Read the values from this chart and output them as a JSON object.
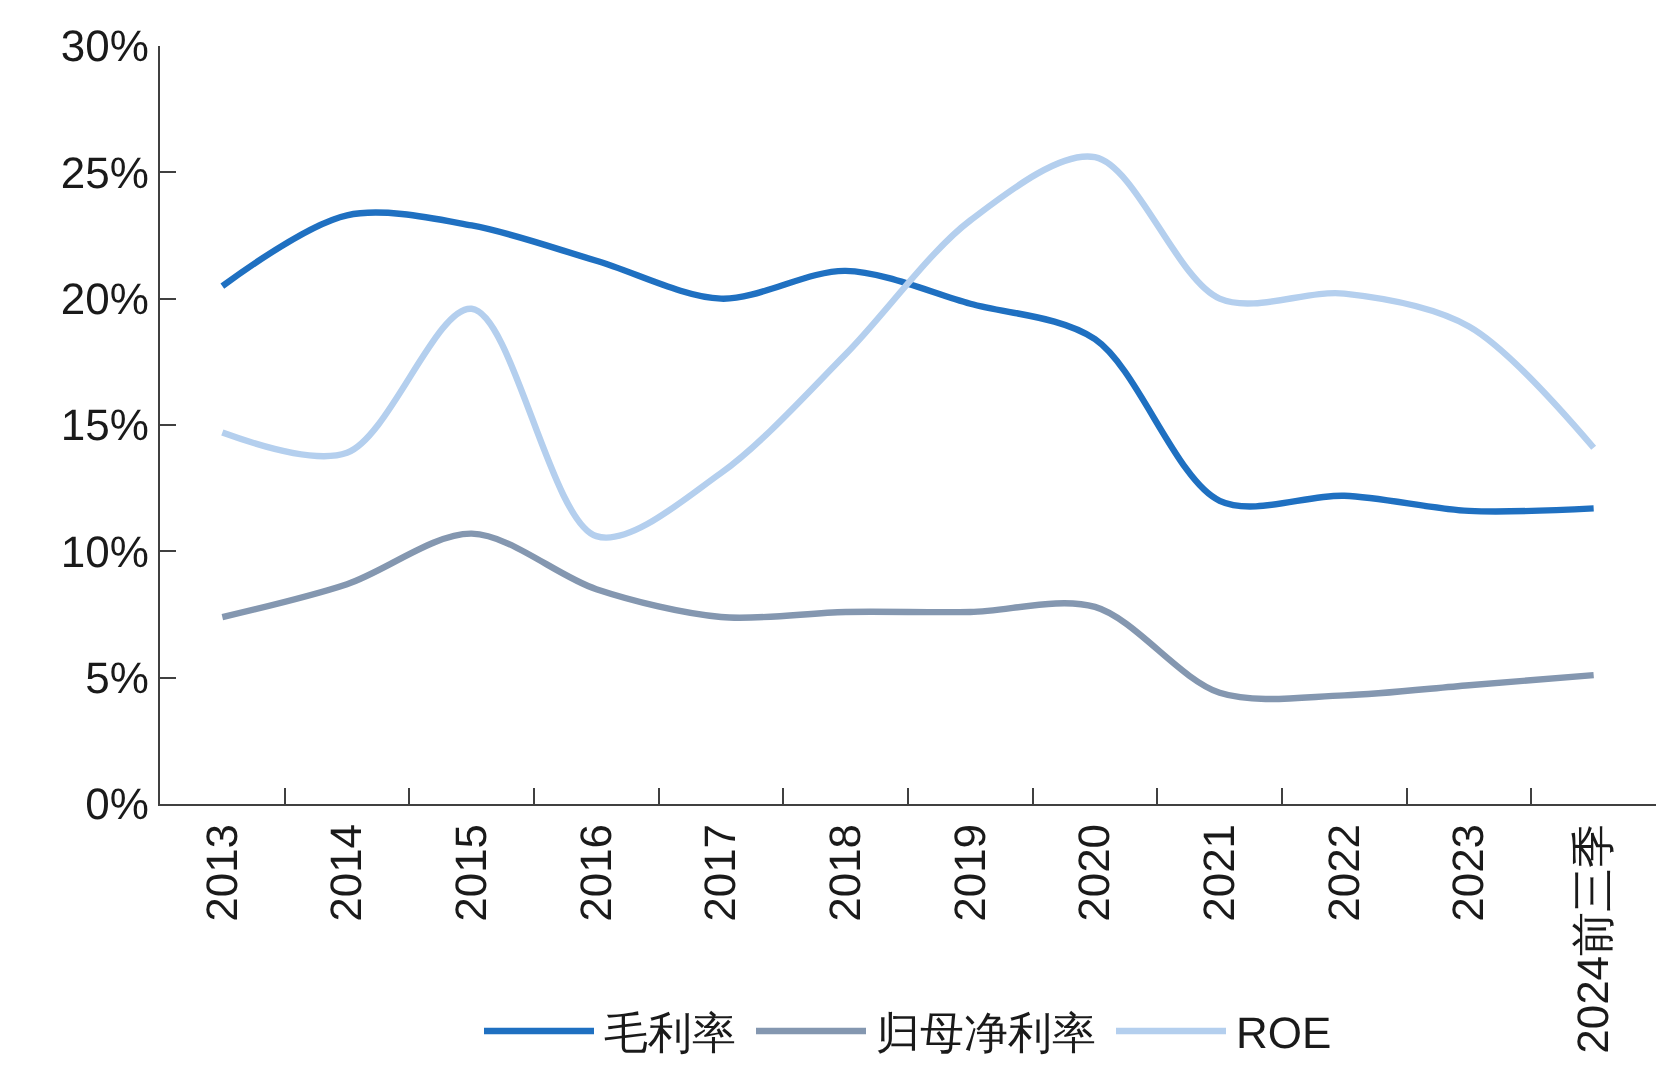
{
  "chart_data": {
    "type": "line",
    "categories": [
      "2013",
      "2014",
      "2015",
      "2016",
      "2017",
      "2018",
      "2019",
      "2020",
      "2021",
      "2022",
      "2023",
      "2024前三季"
    ],
    "series": [
      {
        "name": "毛利率",
        "color": "#1f70c1",
        "values": [
          20.5,
          23.3,
          22.9,
          21.5,
          20.0,
          21.1,
          19.8,
          18.4,
          12.0,
          12.2,
          11.6,
          11.7
        ]
      },
      {
        "name": "归母净利率",
        "color": "#8497b0",
        "values": [
          7.4,
          8.7,
          10.7,
          8.5,
          7.4,
          7.6,
          7.6,
          7.8,
          4.4,
          4.3,
          4.7,
          5.1
        ]
      },
      {
        "name": "ROE",
        "color": "#b4cfee",
        "values": [
          14.7,
          13.9,
          19.6,
          10.6,
          13.1,
          17.8,
          23.1,
          25.6,
          20.0,
          20.2,
          18.9,
          14.1
        ]
      }
    ],
    "ylim": [
      0,
      30
    ],
    "yticks": [
      {
        "value": 0,
        "label": "0%"
      },
      {
        "value": 5,
        "label": "5%"
      },
      {
        "value": 10,
        "label": "10%"
      },
      {
        "value": 15,
        "label": "15%"
      },
      {
        "value": 20,
        "label": "20%"
      },
      {
        "value": 25,
        "label": "25%"
      },
      {
        "value": 30,
        "label": "30%"
      }
    ],
    "legend": "bottom"
  }
}
